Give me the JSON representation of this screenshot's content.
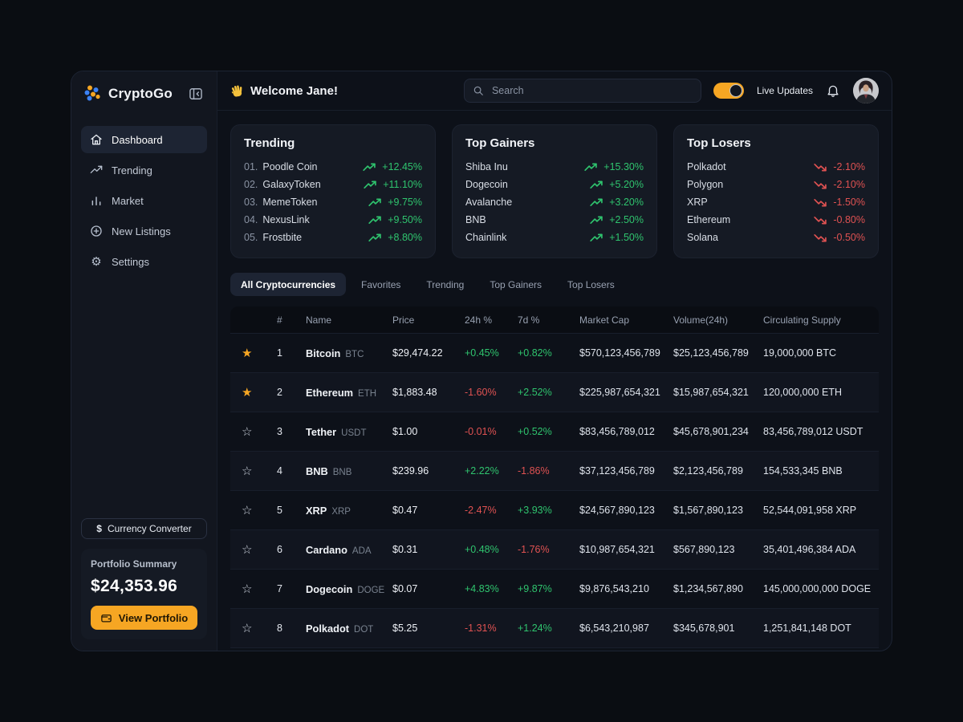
{
  "app": {
    "title": "CryptoGo"
  },
  "colors": {
    "accent_orange": "#f6a623",
    "positive_green": "#2fc46e",
    "negative_red": "#e05252"
  },
  "icons": [
    "logo-dots-icon",
    "sidebar-collapse-icon",
    "home-icon",
    "trending-up-icon",
    "bar-chart-icon",
    "plus-circle-icon",
    "gear-icon",
    "dollar-icon",
    "wallet-icon",
    "wave-icon",
    "search-icon",
    "bell-icon"
  ],
  "sidebar": {
    "nav": [
      {
        "label": "Dashboard",
        "icon": "home-icon",
        "active": true
      },
      {
        "label": "Trending",
        "icon": "trending-up-icon",
        "active": false
      },
      {
        "label": "Market",
        "icon": "bar-chart-icon",
        "active": false
      },
      {
        "label": "New Listings",
        "icon": "plus-circle-icon",
        "active": false
      },
      {
        "label": "Settings",
        "icon": "gear-icon",
        "active": false
      }
    ],
    "currency_converter": {
      "label": "Currency Converter"
    },
    "portfolio": {
      "title": "Portfolio Summary",
      "value": "$24,353.96",
      "button": "View Portfolio"
    }
  },
  "header": {
    "welcome": "Welcome Jane!",
    "search": {
      "placeholder": "Search"
    },
    "live_updates": "Live Updates"
  },
  "cards": [
    {
      "title": "Trending",
      "items": [
        {
          "rank": "01.",
          "name": "Poodle Coin",
          "change": "+12.45%",
          "direction": "up"
        },
        {
          "rank": "02.",
          "name": "GalaxyToken",
          "change": "+11.10%",
          "direction": "up"
        },
        {
          "rank": "03.",
          "name": "MemeToken",
          "change": "+9.75%",
          "direction": "up"
        },
        {
          "rank": "04.",
          "name": "NexusLink",
          "change": "+9.50%",
          "direction": "up"
        },
        {
          "rank": "05.",
          "name": "Frostbite",
          "change": "+8.80%",
          "direction": "up"
        }
      ]
    },
    {
      "title": "Top Gainers",
      "items": [
        {
          "name": "Shiba Inu",
          "change": "+15.30%",
          "direction": "up"
        },
        {
          "name": "Dogecoin",
          "change": "+5.20%",
          "direction": "up"
        },
        {
          "name": "Avalanche",
          "change": "+3.20%",
          "direction": "up"
        },
        {
          "name": "BNB",
          "change": "+2.50%",
          "direction": "up"
        },
        {
          "name": "Chainlink",
          "change": "+1.50%",
          "direction": "up"
        }
      ]
    },
    {
      "title": "Top Losers",
      "items": [
        {
          "name": "Polkadot",
          "change": "-2.10%",
          "direction": "down"
        },
        {
          "name": "Polygon",
          "change": "-2.10%",
          "direction": "down"
        },
        {
          "name": "XRP",
          "change": "-1.50%",
          "direction": "down"
        },
        {
          "name": "Ethereum",
          "change": "-0.80%",
          "direction": "down"
        },
        {
          "name": "Solana",
          "change": "-0.50%",
          "direction": "down"
        }
      ]
    }
  ],
  "tabs": [
    {
      "label": "All Cryptocurrencies",
      "active": true
    },
    {
      "label": "Favorites",
      "active": false
    },
    {
      "label": "Trending",
      "active": false
    },
    {
      "label": "Top Gainers",
      "active": false
    },
    {
      "label": "Top Losers",
      "active": false
    }
  ],
  "table": {
    "columns": [
      "#",
      "Name",
      "Price",
      "24h %",
      "7d %",
      "Market Cap",
      "Volume(24h)",
      "Circulating Supply"
    ],
    "rows": [
      {
        "favorite": true,
        "rank": "1",
        "name": "Bitcoin",
        "symbol": "BTC",
        "price": "$29,474.22",
        "change_24h": "+0.45%",
        "change_7d": "+0.82%",
        "market_cap": "$570,123,456,789",
        "volume_24h": "$25,123,456,789",
        "supply": "19,000,000 BTC"
      },
      {
        "favorite": true,
        "rank": "2",
        "name": "Ethereum",
        "symbol": "ETH",
        "price": "$1,883.48",
        "change_24h": "-1.60%",
        "change_7d": "+2.52%",
        "market_cap": "$225,987,654,321",
        "volume_24h": "$15,987,654,321",
        "supply": "120,000,000 ETH"
      },
      {
        "favorite": false,
        "rank": "3",
        "name": "Tether",
        "symbol": "USDT",
        "price": "$1.00",
        "change_24h": "-0.01%",
        "change_7d": "+0.52%",
        "market_cap": "$83,456,789,012",
        "volume_24h": "$45,678,901,234",
        "supply": "83,456,789,012 USDT"
      },
      {
        "favorite": false,
        "rank": "4",
        "name": "BNB",
        "symbol": "BNB",
        "price": "$239.96",
        "change_24h": "+2.22%",
        "change_7d": "-1.86%",
        "market_cap": "$37,123,456,789",
        "volume_24h": "$2,123,456,789",
        "supply": "154,533,345 BNB"
      },
      {
        "favorite": false,
        "rank": "5",
        "name": "XRP",
        "symbol": "XRP",
        "price": "$0.47",
        "change_24h": "-2.47%",
        "change_7d": "+3.93%",
        "market_cap": "$24,567,890,123",
        "volume_24h": "$1,567,890,123",
        "supply": "52,544,091,958 XRP"
      },
      {
        "favorite": false,
        "rank": "6",
        "name": "Cardano",
        "symbol": "ADA",
        "price": "$0.31",
        "change_24h": "+0.48%",
        "change_7d": "-1.76%",
        "market_cap": "$10,987,654,321",
        "volume_24h": "$567,890,123",
        "supply": "35,401,496,384 ADA"
      },
      {
        "favorite": false,
        "rank": "7",
        "name": "Dogecoin",
        "symbol": "DOGE",
        "price": "$0.07",
        "change_24h": "+4.83%",
        "change_7d": "+9.87%",
        "market_cap": "$9,876,543,210",
        "volume_24h": "$1,234,567,890",
        "supply": "145,000,000,000 DOGE"
      },
      {
        "favorite": false,
        "rank": "8",
        "name": "Polkadot",
        "symbol": "DOT",
        "price": "$5.25",
        "change_24h": "-1.31%",
        "change_7d": "+1.24%",
        "market_cap": "$6,543,210,987",
        "volume_24h": "$345,678,901",
        "supply": "1,251,841,148 DOT"
      }
    ]
  }
}
